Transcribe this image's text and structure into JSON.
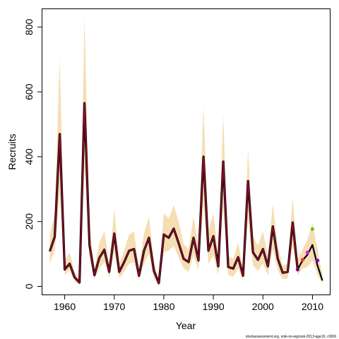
{
  "chart_data": {
    "type": "line",
    "title": "",
    "xlabel": "Year",
    "ylabel": "Recruits",
    "xlim": [
      1955.5,
      2013.5
    ],
    "ylim": [
      -25,
      855
    ],
    "xticks": [
      1960,
      1970,
      1980,
      1990,
      2000,
      2010
    ],
    "yticks": [
      0,
      200,
      400,
      600,
      800
    ],
    "grid": false,
    "legend": "none",
    "footnote": "stockassessment.org, sole-ns-wgnssk-2013-age10, r2009",
    "colors": {
      "band": "#f5deb3",
      "main_line": "#8b0a2e",
      "main_line_outer": "#000000",
      "retro_line": "#000000",
      "retro_points": [
        "#800080",
        "#ff3333",
        "#ff00ff",
        "#66cc00",
        "#7a00cc"
      ]
    },
    "series": [
      {
        "x": [
          1957,
          1958,
          1959,
          1960,
          1961,
          1962,
          1963,
          1964,
          1965,
          1966,
          1967,
          1968,
          1969,
          1970,
          1971,
          1972,
          1973,
          1974,
          1975,
          1976,
          1977,
          1978,
          1979,
          1980,
          1981,
          1982,
          1983,
          1984,
          1985,
          1986,
          1987,
          1988,
          1989,
          1990,
          1991,
          1992,
          1993,
          1994,
          1995,
          1996,
          1997,
          1998,
          1999,
          2000,
          2001,
          2002,
          2003,
          2004,
          2005,
          2006,
          2007
        ],
        "values": [
          108,
          153,
          470,
          52,
          70,
          28,
          12,
          565,
          128,
          35,
          88,
          113,
          45,
          163,
          45,
          75,
          110,
          115,
          33,
          110,
          150,
          48,
          10,
          160,
          150,
          178,
          133,
          85,
          75,
          150,
          80,
          400,
          110,
          155,
          62,
          385,
          60,
          55,
          90,
          33,
          325,
          105,
          82,
          115,
          62,
          185,
          85,
          42,
          45,
          197,
          52
        ],
        "lower": [
          70,
          110,
          290,
          35,
          50,
          15,
          5,
          370,
          85,
          20,
          55,
          75,
          28,
          105,
          25,
          45,
          70,
          75,
          18,
          70,
          100,
          25,
          2,
          105,
          110,
          125,
          90,
          55,
          45,
          95,
          50,
          255,
          70,
          95,
          35,
          245,
          35,
          30,
          55,
          18,
          210,
          65,
          48,
          70,
          35,
          115,
          50,
          22,
          25,
          125,
          35
        ],
        "upper": [
          160,
          225,
          705,
          80,
          105,
          45,
          25,
          830,
          185,
          55,
          135,
          170,
          70,
          240,
          70,
          110,
          160,
          170,
          55,
          165,
          215,
          80,
          20,
          225,
          210,
          250,
          200,
          130,
          115,
          215,
          125,
          555,
          175,
          225,
          95,
          530,
          95,
          85,
          135,
          55,
          425,
          155,
          125,
          170,
          95,
          255,
          125,
          65,
          70,
          275,
          85
        ]
      },
      {
        "x": [
          2007,
          2008,
          2009,
          2010,
          2011,
          2012
        ],
        "values": [
          52,
          80,
          98,
          128,
          65,
          18
        ],
        "lower": [
          35,
          55,
          60,
          80,
          35,
          10
        ],
        "upper": [
          85,
          115,
          145,
          195,
          115,
          35
        ]
      }
    ],
    "retro_points": [
      {
        "x": 2007,
        "y": 52
      },
      {
        "x": 2008,
        "y": 82
      },
      {
        "x": 2009,
        "y": 105
      },
      {
        "x": 2010,
        "y": 177
      },
      {
        "x": 2011,
        "y": 80
      }
    ]
  }
}
